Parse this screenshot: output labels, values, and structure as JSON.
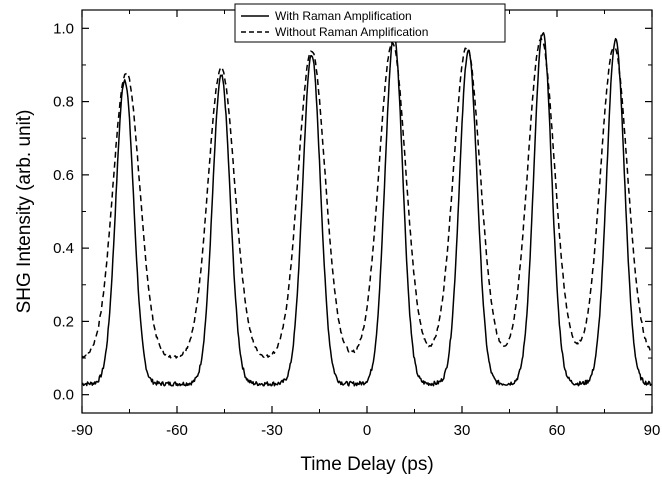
{
  "chart_data": {
    "type": "line",
    "title": "",
    "xlabel": "Time Delay (ps)",
    "ylabel": "SHG Intensity (arb. unit)",
    "xlim": [
      -90,
      90
    ],
    "ylim": [
      -0.05,
      1.05
    ],
    "xticks": [
      -90,
      -60,
      -30,
      0,
      30,
      60,
      90
    ],
    "xtick_labels": [
      "-90",
      "-60",
      "-30",
      "0",
      "30",
      "60",
      "90"
    ],
    "yticks": [
      0.0,
      0.2,
      0.4,
      0.6,
      0.8,
      1.0
    ],
    "ytick_labels": [
      "0.0",
      "0.2",
      "0.4",
      "0.6",
      "0.8",
      "1.0"
    ],
    "grid": false,
    "legend_position": "top-center",
    "series": [
      {
        "name": "With Raman Amplification",
        "line_style": "solid",
        "color": "#000000",
        "peaks": [
          {
            "x": -76.5,
            "y": 0.86
          },
          {
            "x": -46.0,
            "y": 0.87
          },
          {
            "x": -17.5,
            "y": 0.93
          },
          {
            "x": 8.5,
            "y": 0.98
          },
          {
            "x": 32.0,
            "y": 0.94
          },
          {
            "x": 55.5,
            "y": 0.99
          },
          {
            "x": 78.5,
            "y": 0.97
          }
        ],
        "baseline": 0.03,
        "peak_width_ps": 2.8
      },
      {
        "name": "Without Raman Amplification",
        "line_style": "dashed",
        "color": "#000000",
        "peaks": [
          {
            "x": -76.0,
            "y": 0.88
          },
          {
            "x": -46.0,
            "y": 0.89
          },
          {
            "x": -17.5,
            "y": 0.94
          },
          {
            "x": 8.0,
            "y": 0.96
          },
          {
            "x": 31.5,
            "y": 0.95
          },
          {
            "x": 55.0,
            "y": 0.97
          },
          {
            "x": 78.0,
            "y": 0.95
          }
        ],
        "baseline": 0.1,
        "peak_width_ps": 4.2
      }
    ]
  }
}
